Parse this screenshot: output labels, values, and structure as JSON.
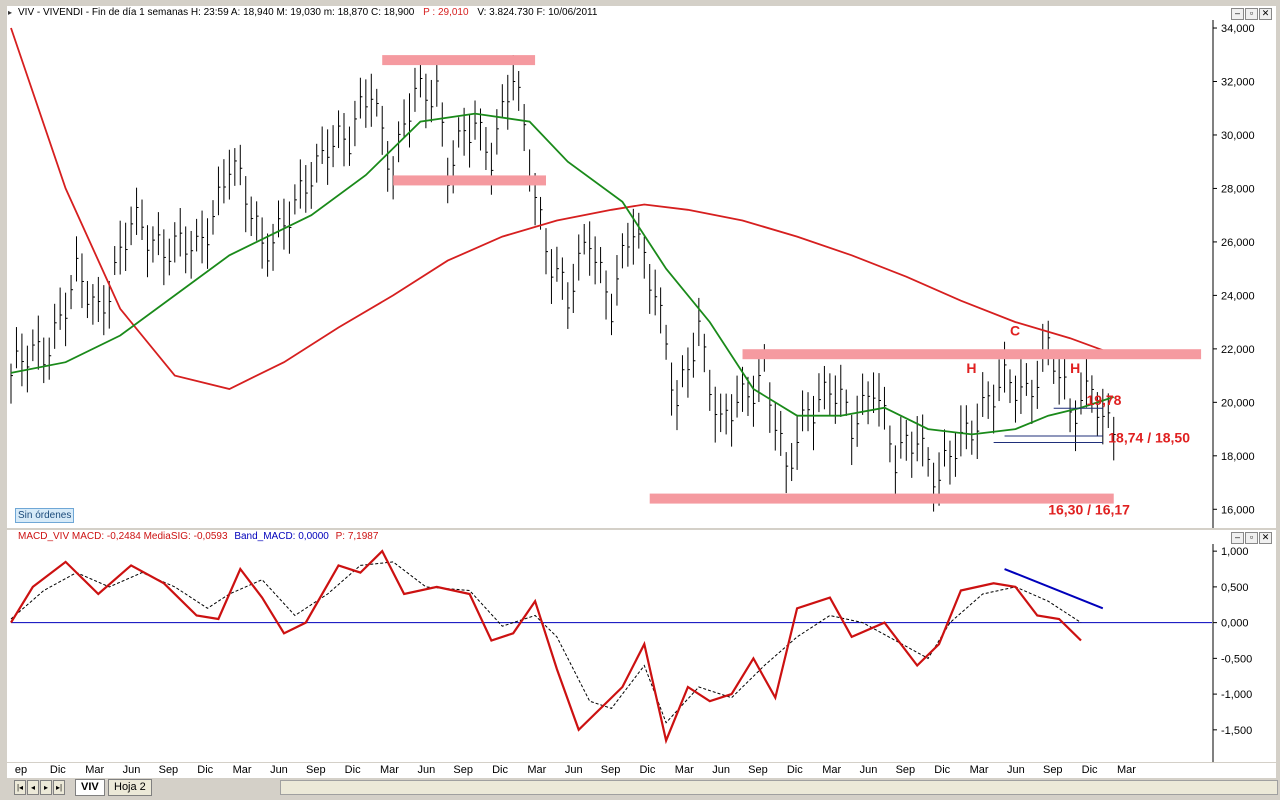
{
  "main_header": {
    "title": "VIV - VIVENDI - Fin de día 1 semanas  H: 23:59  A: 18,940  M: 19,030  m: 18,870  C: 18,900",
    "p_value": "P : 29,010",
    "tail": "V: 3.824.730  F: 10/06/2011"
  },
  "macd_header": {
    "a": "MACD_VIV  MACD: -0,2484  MediaSIG: -0,0593",
    "b": "Band_MACD: 0,0000",
    "c": "P: 7,1987"
  },
  "window_buttons": {
    "minimize": "–",
    "restore": "▫",
    "close": "✕"
  },
  "sin_ordenes": "Sin órdenes",
  "tabs": {
    "active": "VIV",
    "other": "Hoja 2"
  },
  "colors": {
    "price": "#000000",
    "ma_fast": "#1a8a1a",
    "ma_slow": "#d61f1f",
    "zone": "#f59aa0",
    "annotation": "#e02020",
    "macd": "#cc1111",
    "signal": "#000000",
    "band": "#0000bb"
  },
  "chart_data": [
    {
      "type": "line",
      "name": "price",
      "x_ticks": [
        "ep",
        "Dic",
        "Mar",
        "Jun",
        "Sep",
        "Dic",
        "Mar",
        "Jun",
        "Sep",
        "Dic",
        "Mar",
        "Jun",
        "Sep",
        "Dic",
        "Mar",
        "Jun",
        "Sep",
        "Dic",
        "Mar",
        "Jun",
        "Sep",
        "Dic",
        "Mar",
        "Jun",
        "Sep",
        "Dic",
        "Mar",
        "Jun",
        "Sep",
        "Dic",
        "Mar"
      ],
      "y_ticks": [
        "16,000",
        "18,000",
        "20,000",
        "22,000",
        "24,000",
        "26,000",
        "28,000",
        "30,000",
        "32,000",
        "34,000"
      ],
      "ylim": [
        15.3,
        34.3
      ],
      "x_index_range": [
        0,
        220
      ],
      "price_anchors": [
        [
          0,
          21.0
        ],
        [
          6,
          22.0
        ],
        [
          12,
          24.5
        ],
        [
          16,
          23.5
        ],
        [
          22,
          26.5
        ],
        [
          28,
          26.0
        ],
        [
          34,
          25.5
        ],
        [
          40,
          29.0
        ],
        [
          46,
          26.0
        ],
        [
          52,
          27.0
        ],
        [
          58,
          30.0
        ],
        [
          62,
          29.5
        ],
        [
          66,
          32.0
        ],
        [
          70,
          28.5
        ],
        [
          74,
          31.5
        ],
        [
          78,
          32.0
        ],
        [
          80,
          28.5
        ],
        [
          85,
          30.5
        ],
        [
          88,
          29.5
        ],
        [
          92,
          32.0
        ],
        [
          96,
          28.0
        ],
        [
          98,
          26.0
        ],
        [
          102,
          23.5
        ],
        [
          106,
          26.5
        ],
        [
          110,
          23.5
        ],
        [
          114,
          26.5
        ],
        [
          118,
          24.5
        ],
        [
          122,
          19.5
        ],
        [
          126,
          23.0
        ],
        [
          130,
          19.0
        ],
        [
          134,
          20.0
        ],
        [
          138,
          21.5
        ],
        [
          142,
          17.0
        ],
        [
          146,
          20.0
        ],
        [
          150,
          20.5
        ],
        [
          154,
          19.0
        ],
        [
          158,
          21.0
        ],
        [
          162,
          17.5
        ],
        [
          166,
          19.0
        ],
        [
          170,
          17.0
        ],
        [
          174,
          18.5
        ],
        [
          178,
          20.0
        ],
        [
          182,
          20.5
        ],
        [
          186,
          20.5
        ],
        [
          190,
          22.0
        ],
        [
          194,
          19.5
        ],
        [
          198,
          21.0
        ],
        [
          200,
          19.0
        ],
        [
          202,
          18.9
        ]
      ],
      "ma_fast": [
        [
          0,
          21.1
        ],
        [
          10,
          21.5
        ],
        [
          20,
          22.5
        ],
        [
          30,
          24.0
        ],
        [
          40,
          25.5
        ],
        [
          55,
          27.0
        ],
        [
          65,
          28.5
        ],
        [
          75,
          30.5
        ],
        [
          85,
          30.8
        ],
        [
          95,
          30.5
        ],
        [
          102,
          29.0
        ],
        [
          112,
          27.5
        ],
        [
          120,
          25.0
        ],
        [
          128,
          23.0
        ],
        [
          136,
          20.5
        ],
        [
          144,
          19.5
        ],
        [
          152,
          19.5
        ],
        [
          160,
          19.8
        ],
        [
          168,
          19.0
        ],
        [
          176,
          18.8
        ],
        [
          184,
          19.0
        ],
        [
          190,
          19.5
        ],
        [
          196,
          19.8
        ],
        [
          202,
          20.2
        ]
      ],
      "ma_slow": [
        [
          0,
          34.0
        ],
        [
          10,
          28.0
        ],
        [
          20,
          23.5
        ],
        [
          30,
          21.0
        ],
        [
          40,
          20.5
        ],
        [
          50,
          21.5
        ],
        [
          60,
          22.8
        ],
        [
          70,
          24.0
        ],
        [
          80,
          25.3
        ],
        [
          90,
          26.2
        ],
        [
          100,
          26.8
        ],
        [
          110,
          27.2
        ],
        [
          116,
          27.4
        ],
        [
          124,
          27.2
        ],
        [
          134,
          26.8
        ],
        [
          144,
          26.2
        ],
        [
          154,
          25.5
        ],
        [
          164,
          24.7
        ],
        [
          174,
          23.8
        ],
        [
          184,
          23.0
        ],
        [
          194,
          22.4
        ],
        [
          202,
          21.8
        ]
      ],
      "zones": [
        {
          "x": [
            68,
            96
          ],
          "y": 32.8
        },
        {
          "x": [
            70,
            98
          ],
          "y": 28.3
        },
        {
          "x": [
            134,
            218
          ],
          "y": 21.8
        },
        {
          "x": [
            117,
            202
          ],
          "y": 16.4
        }
      ],
      "support_lines": [
        {
          "x": [
            191,
            200
          ],
          "y": 19.78
        },
        {
          "x": [
            182,
            200
          ],
          "y": 18.74
        },
        {
          "x": [
            180,
            200
          ],
          "y": 18.5
        }
      ],
      "annotations": [
        {
          "text": "C",
          "x": 183,
          "y": 22.5
        },
        {
          "text": "H",
          "x": 175,
          "y": 21.1
        },
        {
          "text": "H",
          "x": 194,
          "y": 21.1
        },
        {
          "text": "19,78",
          "x": 197,
          "y": 19.9
        },
        {
          "text": "18,74 / 18,50",
          "x": 201,
          "y": 18.5
        },
        {
          "text": "16,30 / 16,17",
          "x": 190,
          "y": 15.8
        }
      ]
    },
    {
      "type": "line",
      "name": "MACD",
      "y_ticks": [
        "1,000",
        "0,500",
        "0,000",
        "-0,500",
        "-1,000",
        "-1,500"
      ],
      "ylim": [
        -1.95,
        1.1
      ],
      "macd": [
        [
          0,
          0.0
        ],
        [
          4,
          0.5
        ],
        [
          10,
          0.85
        ],
        [
          16,
          0.4
        ],
        [
          22,
          0.8
        ],
        [
          28,
          0.55
        ],
        [
          34,
          0.1
        ],
        [
          38,
          0.05
        ],
        [
          42,
          0.75
        ],
        [
          46,
          0.35
        ],
        [
          50,
          -0.15
        ],
        [
          54,
          0.0
        ],
        [
          60,
          0.8
        ],
        [
          64,
          0.7
        ],
        [
          68,
          1.0
        ],
        [
          72,
          0.4
        ],
        [
          78,
          0.5
        ],
        [
          84,
          0.4
        ],
        [
          88,
          -0.25
        ],
        [
          92,
          -0.15
        ],
        [
          96,
          0.3
        ],
        [
          100,
          -0.65
        ],
        [
          104,
          -1.5
        ],
        [
          108,
          -1.2
        ],
        [
          112,
          -0.9
        ],
        [
          116,
          -0.3
        ],
        [
          120,
          -1.65
        ],
        [
          124,
          -0.9
        ],
        [
          128,
          -1.1
        ],
        [
          132,
          -1.0
        ],
        [
          136,
          -0.5
        ],
        [
          140,
          -1.05
        ],
        [
          144,
          0.2
        ],
        [
          150,
          0.35
        ],
        [
          154,
          -0.2
        ],
        [
          160,
          0.0
        ],
        [
          166,
          -0.6
        ],
        [
          170,
          -0.3
        ],
        [
          174,
          0.45
        ],
        [
          180,
          0.55
        ],
        [
          184,
          0.5
        ],
        [
          188,
          0.1
        ],
        [
          192,
          0.05
        ],
        [
          196,
          -0.25
        ]
      ],
      "signal": [
        [
          0,
          0.05
        ],
        [
          6,
          0.45
        ],
        [
          12,
          0.7
        ],
        [
          18,
          0.5
        ],
        [
          24,
          0.7
        ],
        [
          30,
          0.5
        ],
        [
          36,
          0.2
        ],
        [
          40,
          0.4
        ],
        [
          46,
          0.6
        ],
        [
          52,
          0.1
        ],
        [
          58,
          0.4
        ],
        [
          64,
          0.8
        ],
        [
          70,
          0.85
        ],
        [
          76,
          0.5
        ],
        [
          84,
          0.45
        ],
        [
          90,
          -0.05
        ],
        [
          96,
          0.1
        ],
        [
          100,
          -0.2
        ],
        [
          106,
          -1.1
        ],
        [
          110,
          -1.2
        ],
        [
          116,
          -0.6
        ],
        [
          120,
          -1.4
        ],
        [
          126,
          -0.9
        ],
        [
          132,
          -1.05
        ],
        [
          138,
          -0.6
        ],
        [
          144,
          -0.2
        ],
        [
          150,
          0.1
        ],
        [
          156,
          0.0
        ],
        [
          162,
          -0.25
        ],
        [
          168,
          -0.5
        ],
        [
          172,
          0.0
        ],
        [
          178,
          0.4
        ],
        [
          184,
          0.5
        ],
        [
          190,
          0.3
        ],
        [
          196,
          0.0
        ]
      ],
      "band": 0.0,
      "trend_line": {
        "x": [
          182,
          200
        ],
        "y": [
          0.75,
          0.2
        ]
      }
    }
  ]
}
